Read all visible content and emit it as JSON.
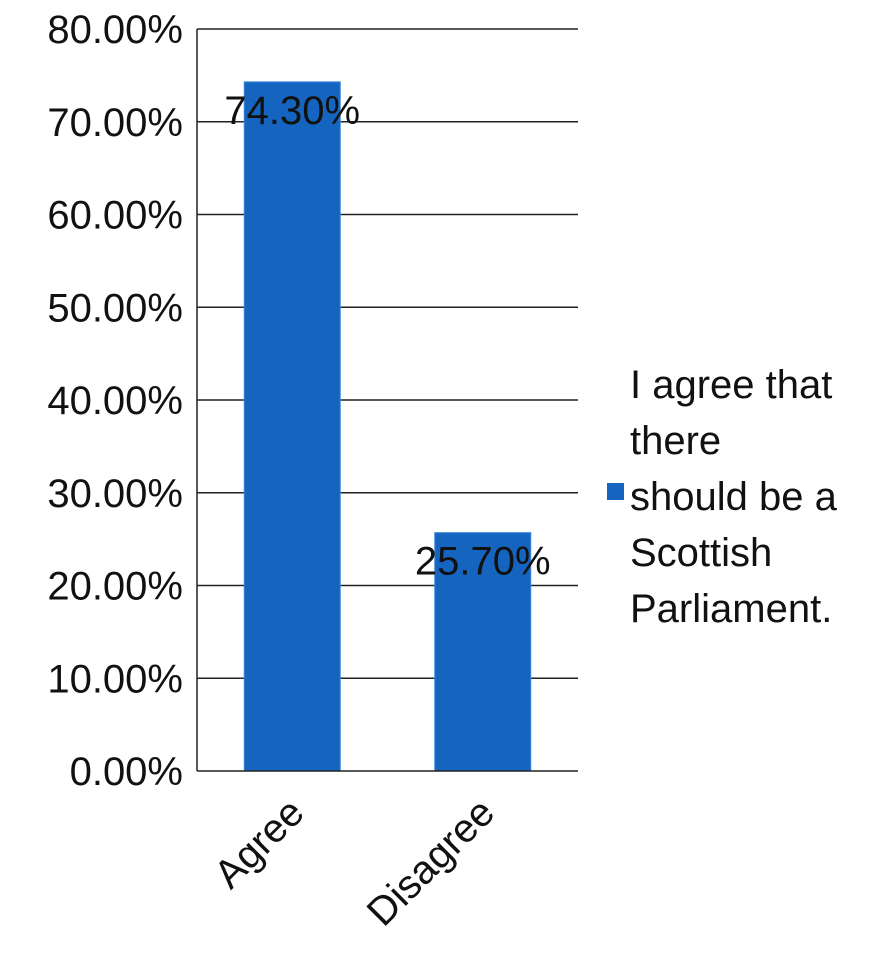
{
  "chart_data": {
    "type": "bar",
    "categories": [
      "Agree",
      "Disagree"
    ],
    "series": [
      {
        "name": "I agree that there should be a Scottish Parliament.",
        "values": [
          74.3,
          25.7
        ],
        "data_labels": [
          "74.30%",
          "25.70%"
        ],
        "color": "#1565C0"
      }
    ],
    "ylim": [
      0,
      80
    ],
    "y_ticks": [
      0,
      10,
      20,
      30,
      40,
      50,
      60,
      70,
      80
    ],
    "y_tick_labels": [
      "0.00%",
      "10.00%",
      "20.00%",
      "30.00%",
      "40.00%",
      "50.00%",
      "60.00%",
      "70.00%",
      "80.00%"
    ],
    "grid": true,
    "legend_position": "right",
    "legend_lines": [
      "I agree that",
      "there",
      "should be a",
      "Scottish",
      "Parliament."
    ]
  }
}
